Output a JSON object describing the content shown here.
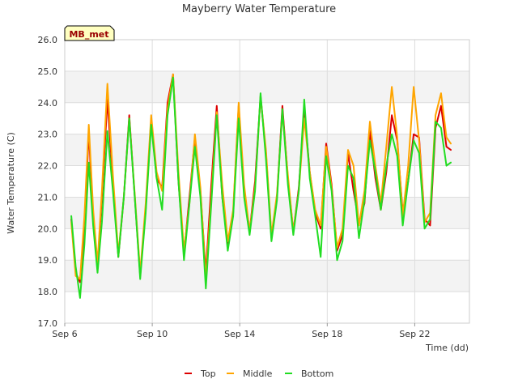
{
  "chart_data": {
    "type": "line",
    "title": "Mayberry Water Temperature",
    "xlabel": "Time (dd)",
    "ylabel": "Water Temperature (C)",
    "station_label": "MB_met",
    "xlim": [
      6,
      24.5
    ],
    "ylim": [
      17.0,
      26.0
    ],
    "x_ticks": [
      {
        "value": 6,
        "label": "Sep 6"
      },
      {
        "value": 10,
        "label": "Sep 10"
      },
      {
        "value": 14,
        "label": "Sep 14"
      },
      {
        "value": 18,
        "label": "Sep 18"
      },
      {
        "value": 22,
        "label": "Sep 22"
      }
    ],
    "y_ticks": [
      17.0,
      18.0,
      19.0,
      20.0,
      21.0,
      22.0,
      23.0,
      24.0,
      25.0,
      26.0
    ],
    "y_tick_labels": [
      "17.0",
      "18.0",
      "19.0",
      "20.0",
      "21.0",
      "22.0",
      "23.0",
      "24.0",
      "25.0",
      "26.0"
    ],
    "grid": true,
    "background_bands": true,
    "legend_position": "bottom-center",
    "series": [
      {
        "name": "Top",
        "color": "#dd0000",
        "x": [
          6.3,
          6.5,
          6.7,
          6.9,
          7.1,
          7.3,
          7.5,
          7.7,
          7.95,
          8.2,
          8.45,
          8.7,
          8.95,
          9.2,
          9.45,
          9.7,
          9.95,
          10.2,
          10.45,
          10.7,
          10.95,
          11.2,
          11.45,
          11.7,
          11.95,
          12.2,
          12.45,
          12.7,
          12.95,
          13.2,
          13.45,
          13.7,
          13.95,
          14.2,
          14.45,
          14.7,
          14.95,
          15.2,
          15.45,
          15.7,
          15.95,
          16.2,
          16.45,
          16.7,
          16.95,
          17.2,
          17.45,
          17.7,
          17.95,
          18.2,
          18.45,
          18.7,
          18.95,
          19.2,
          19.45,
          19.7,
          19.95,
          20.2,
          20.45,
          20.7,
          20.95,
          21.2,
          21.45,
          21.7,
          21.95,
          22.2,
          22.45,
          22.7,
          22.95,
          23.2,
          23.45,
          23.65
        ],
        "y": [
          20.3,
          18.6,
          18.3,
          20.0,
          23.1,
          20.3,
          18.8,
          21.0,
          24.1,
          21.5,
          19.1,
          21.0,
          23.6,
          21.0,
          18.5,
          20.6,
          23.5,
          21.6,
          21.3,
          24.0,
          24.9,
          21.5,
          19.2,
          21.0,
          22.9,
          21.2,
          18.6,
          21.4,
          23.9,
          21.0,
          19.5,
          20.5,
          23.9,
          21.2,
          19.9,
          21.5,
          24.2,
          22.4,
          19.7,
          21.0,
          23.9,
          21.6,
          19.9,
          21.3,
          23.8,
          21.8,
          20.5,
          20.0,
          22.7,
          21.4,
          19.3,
          19.8,
          22.4,
          21.2,
          20.2,
          20.8,
          23.1,
          21.6,
          20.6,
          21.8,
          23.6,
          22.8,
          20.5,
          21.5,
          23.0,
          22.9,
          20.3,
          20.1,
          23.2,
          23.9,
          22.6,
          22.5
        ],
        "_note_": ""
      },
      {
        "name": "Middle",
        "color": "#ffa500",
        "x": [
          6.3,
          6.5,
          6.7,
          6.9,
          7.1,
          7.3,
          7.5,
          7.7,
          7.95,
          8.2,
          8.45,
          8.7,
          8.95,
          9.2,
          9.45,
          9.7,
          9.95,
          10.2,
          10.45,
          10.7,
          10.95,
          11.2,
          11.45,
          11.7,
          11.95,
          12.2,
          12.45,
          12.7,
          12.95,
          13.2,
          13.45,
          13.7,
          13.95,
          14.2,
          14.45,
          14.7,
          14.95,
          15.2,
          15.45,
          15.7,
          15.95,
          16.2,
          16.45,
          16.7,
          16.95,
          17.2,
          17.45,
          17.7,
          17.95,
          18.2,
          18.45,
          18.7,
          18.95,
          19.2,
          19.45,
          19.7,
          19.95,
          20.2,
          20.45,
          20.7,
          20.95,
          21.2,
          21.45,
          21.7,
          21.95,
          22.2,
          22.45,
          22.7,
          22.95,
          23.2,
          23.45,
          23.65
        ],
        "y": [
          20.2,
          18.5,
          18.4,
          20.4,
          23.3,
          20.6,
          18.9,
          21.2,
          24.6,
          21.7,
          19.2,
          21.0,
          23.5,
          21.1,
          18.6,
          20.8,
          23.6,
          21.8,
          21.2,
          23.8,
          24.9,
          21.8,
          19.3,
          20.8,
          23.0,
          21.3,
          18.4,
          21.0,
          23.7,
          21.4,
          19.6,
          20.6,
          24.0,
          21.4,
          19.9,
          21.3,
          24.2,
          22.5,
          19.8,
          21.1,
          23.7,
          21.7,
          19.9,
          21.2,
          23.5,
          21.8,
          20.6,
          20.1,
          22.6,
          21.3,
          19.4,
          20.0,
          22.5,
          22.0,
          20.1,
          21.2,
          23.4,
          22.0,
          20.8,
          22.6,
          24.5,
          22.9,
          20.4,
          22.0,
          24.5,
          22.8,
          20.2,
          20.5,
          23.6,
          24.3,
          22.9,
          22.7
        ]
      },
      {
        "name": "Bottom",
        "color": "#22dd22",
        "x": [
          6.3,
          6.5,
          6.7,
          6.9,
          7.1,
          7.3,
          7.5,
          7.7,
          7.95,
          8.2,
          8.45,
          8.7,
          8.95,
          9.2,
          9.45,
          9.7,
          9.95,
          10.2,
          10.45,
          10.7,
          10.95,
          11.2,
          11.45,
          11.7,
          11.95,
          12.2,
          12.45,
          12.7,
          12.95,
          13.2,
          13.45,
          13.7,
          13.95,
          14.2,
          14.45,
          14.7,
          14.95,
          15.2,
          15.45,
          15.7,
          15.95,
          16.2,
          16.45,
          16.7,
          16.95,
          17.2,
          17.45,
          17.7,
          17.95,
          18.2,
          18.45,
          18.7,
          18.95,
          19.2,
          19.45,
          19.7,
          19.95,
          20.2,
          20.45,
          20.7,
          20.95,
          21.2,
          21.45,
          21.7,
          21.95,
          22.2,
          22.45,
          22.7,
          22.95,
          23.2,
          23.45,
          23.65
        ],
        "y": [
          20.4,
          18.8,
          17.8,
          19.5,
          22.1,
          20.1,
          18.6,
          20.2,
          23.1,
          21.2,
          19.1,
          21.0,
          23.5,
          21.0,
          18.4,
          20.5,
          23.3,
          21.6,
          20.6,
          23.6,
          24.8,
          21.5,
          19.0,
          20.8,
          22.6,
          21.0,
          18.1,
          20.8,
          23.6,
          21.0,
          19.3,
          20.4,
          23.5,
          21.0,
          19.8,
          21.2,
          24.3,
          22.2,
          19.6,
          20.9,
          23.8,
          21.4,
          19.8,
          21.2,
          24.1,
          21.6,
          20.4,
          19.1,
          22.3,
          21.2,
          19.0,
          19.6,
          22.0,
          21.6,
          19.7,
          20.9,
          22.8,
          21.8,
          20.6,
          22.0,
          23.0,
          22.3,
          20.1,
          21.5,
          22.8,
          22.4,
          20.0,
          20.3,
          23.4,
          23.2,
          22.0,
          22.1
        ]
      }
    ]
  }
}
